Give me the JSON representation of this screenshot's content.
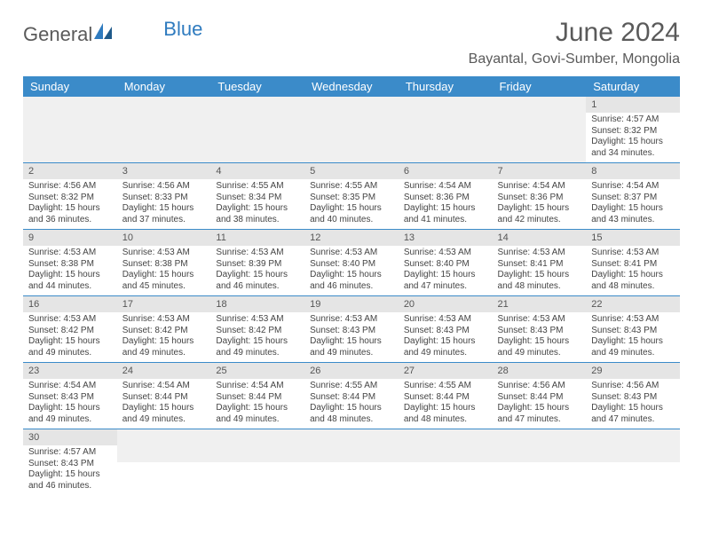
{
  "brand": {
    "general": "General",
    "blue": "Blue"
  },
  "title": "June 2024",
  "location": "Bayantal, Govi-Sumber, Mongolia",
  "weekdays": [
    "Sunday",
    "Monday",
    "Tuesday",
    "Wednesday",
    "Thursday",
    "Friday",
    "Saturday"
  ],
  "weeks": [
    [
      {
        "empty": true
      },
      {
        "empty": true
      },
      {
        "empty": true
      },
      {
        "empty": true
      },
      {
        "empty": true
      },
      {
        "empty": true
      },
      {
        "day": "1",
        "sunrise": "Sunrise: 4:57 AM",
        "sunset": "Sunset: 8:32 PM",
        "daylight1": "Daylight: 15 hours",
        "daylight2": "and 34 minutes."
      }
    ],
    [
      {
        "day": "2",
        "sunrise": "Sunrise: 4:56 AM",
        "sunset": "Sunset: 8:32 PM",
        "daylight1": "Daylight: 15 hours",
        "daylight2": "and 36 minutes."
      },
      {
        "day": "3",
        "sunrise": "Sunrise: 4:56 AM",
        "sunset": "Sunset: 8:33 PM",
        "daylight1": "Daylight: 15 hours",
        "daylight2": "and 37 minutes."
      },
      {
        "day": "4",
        "sunrise": "Sunrise: 4:55 AM",
        "sunset": "Sunset: 8:34 PM",
        "daylight1": "Daylight: 15 hours",
        "daylight2": "and 38 minutes."
      },
      {
        "day": "5",
        "sunrise": "Sunrise: 4:55 AM",
        "sunset": "Sunset: 8:35 PM",
        "daylight1": "Daylight: 15 hours",
        "daylight2": "and 40 minutes."
      },
      {
        "day": "6",
        "sunrise": "Sunrise: 4:54 AM",
        "sunset": "Sunset: 8:36 PM",
        "daylight1": "Daylight: 15 hours",
        "daylight2": "and 41 minutes."
      },
      {
        "day": "7",
        "sunrise": "Sunrise: 4:54 AM",
        "sunset": "Sunset: 8:36 PM",
        "daylight1": "Daylight: 15 hours",
        "daylight2": "and 42 minutes."
      },
      {
        "day": "8",
        "sunrise": "Sunrise: 4:54 AM",
        "sunset": "Sunset: 8:37 PM",
        "daylight1": "Daylight: 15 hours",
        "daylight2": "and 43 minutes."
      }
    ],
    [
      {
        "day": "9",
        "sunrise": "Sunrise: 4:53 AM",
        "sunset": "Sunset: 8:38 PM",
        "daylight1": "Daylight: 15 hours",
        "daylight2": "and 44 minutes."
      },
      {
        "day": "10",
        "sunrise": "Sunrise: 4:53 AM",
        "sunset": "Sunset: 8:38 PM",
        "daylight1": "Daylight: 15 hours",
        "daylight2": "and 45 minutes."
      },
      {
        "day": "11",
        "sunrise": "Sunrise: 4:53 AM",
        "sunset": "Sunset: 8:39 PM",
        "daylight1": "Daylight: 15 hours",
        "daylight2": "and 46 minutes."
      },
      {
        "day": "12",
        "sunrise": "Sunrise: 4:53 AM",
        "sunset": "Sunset: 8:40 PM",
        "daylight1": "Daylight: 15 hours",
        "daylight2": "and 46 minutes."
      },
      {
        "day": "13",
        "sunrise": "Sunrise: 4:53 AM",
        "sunset": "Sunset: 8:40 PM",
        "daylight1": "Daylight: 15 hours",
        "daylight2": "and 47 minutes."
      },
      {
        "day": "14",
        "sunrise": "Sunrise: 4:53 AM",
        "sunset": "Sunset: 8:41 PM",
        "daylight1": "Daylight: 15 hours",
        "daylight2": "and 48 minutes."
      },
      {
        "day": "15",
        "sunrise": "Sunrise: 4:53 AM",
        "sunset": "Sunset: 8:41 PM",
        "daylight1": "Daylight: 15 hours",
        "daylight2": "and 48 minutes."
      }
    ],
    [
      {
        "day": "16",
        "sunrise": "Sunrise: 4:53 AM",
        "sunset": "Sunset: 8:42 PM",
        "daylight1": "Daylight: 15 hours",
        "daylight2": "and 49 minutes."
      },
      {
        "day": "17",
        "sunrise": "Sunrise: 4:53 AM",
        "sunset": "Sunset: 8:42 PM",
        "daylight1": "Daylight: 15 hours",
        "daylight2": "and 49 minutes."
      },
      {
        "day": "18",
        "sunrise": "Sunrise: 4:53 AM",
        "sunset": "Sunset: 8:42 PM",
        "daylight1": "Daylight: 15 hours",
        "daylight2": "and 49 minutes."
      },
      {
        "day": "19",
        "sunrise": "Sunrise: 4:53 AM",
        "sunset": "Sunset: 8:43 PM",
        "daylight1": "Daylight: 15 hours",
        "daylight2": "and 49 minutes."
      },
      {
        "day": "20",
        "sunrise": "Sunrise: 4:53 AM",
        "sunset": "Sunset: 8:43 PM",
        "daylight1": "Daylight: 15 hours",
        "daylight2": "and 49 minutes."
      },
      {
        "day": "21",
        "sunrise": "Sunrise: 4:53 AM",
        "sunset": "Sunset: 8:43 PM",
        "daylight1": "Daylight: 15 hours",
        "daylight2": "and 49 minutes."
      },
      {
        "day": "22",
        "sunrise": "Sunrise: 4:53 AM",
        "sunset": "Sunset: 8:43 PM",
        "daylight1": "Daylight: 15 hours",
        "daylight2": "and 49 minutes."
      }
    ],
    [
      {
        "day": "23",
        "sunrise": "Sunrise: 4:54 AM",
        "sunset": "Sunset: 8:43 PM",
        "daylight1": "Daylight: 15 hours",
        "daylight2": "and 49 minutes."
      },
      {
        "day": "24",
        "sunrise": "Sunrise: 4:54 AM",
        "sunset": "Sunset: 8:44 PM",
        "daylight1": "Daylight: 15 hours",
        "daylight2": "and 49 minutes."
      },
      {
        "day": "25",
        "sunrise": "Sunrise: 4:54 AM",
        "sunset": "Sunset: 8:44 PM",
        "daylight1": "Daylight: 15 hours",
        "daylight2": "and 49 minutes."
      },
      {
        "day": "26",
        "sunrise": "Sunrise: 4:55 AM",
        "sunset": "Sunset: 8:44 PM",
        "daylight1": "Daylight: 15 hours",
        "daylight2": "and 48 minutes."
      },
      {
        "day": "27",
        "sunrise": "Sunrise: 4:55 AM",
        "sunset": "Sunset: 8:44 PM",
        "daylight1": "Daylight: 15 hours",
        "daylight2": "and 48 minutes."
      },
      {
        "day": "28",
        "sunrise": "Sunrise: 4:56 AM",
        "sunset": "Sunset: 8:44 PM",
        "daylight1": "Daylight: 15 hours",
        "daylight2": "and 47 minutes."
      },
      {
        "day": "29",
        "sunrise": "Sunrise: 4:56 AM",
        "sunset": "Sunset: 8:43 PM",
        "daylight1": "Daylight: 15 hours",
        "daylight2": "and 47 minutes."
      }
    ],
    [
      {
        "day": "30",
        "sunrise": "Sunrise: 4:57 AM",
        "sunset": "Sunset: 8:43 PM",
        "daylight1": "Daylight: 15 hours",
        "daylight2": "and 46 minutes."
      },
      {
        "empty": true
      },
      {
        "empty": true
      },
      {
        "empty": true
      },
      {
        "empty": true
      },
      {
        "empty": true
      },
      {
        "empty": true
      }
    ]
  ],
  "colors": {
    "header_bg": "#3b8bc9",
    "header_text": "#ffffff",
    "daynum_bg": "#e5e5e5",
    "row_divider": "#3b8bc9",
    "body_text": "#444444"
  }
}
